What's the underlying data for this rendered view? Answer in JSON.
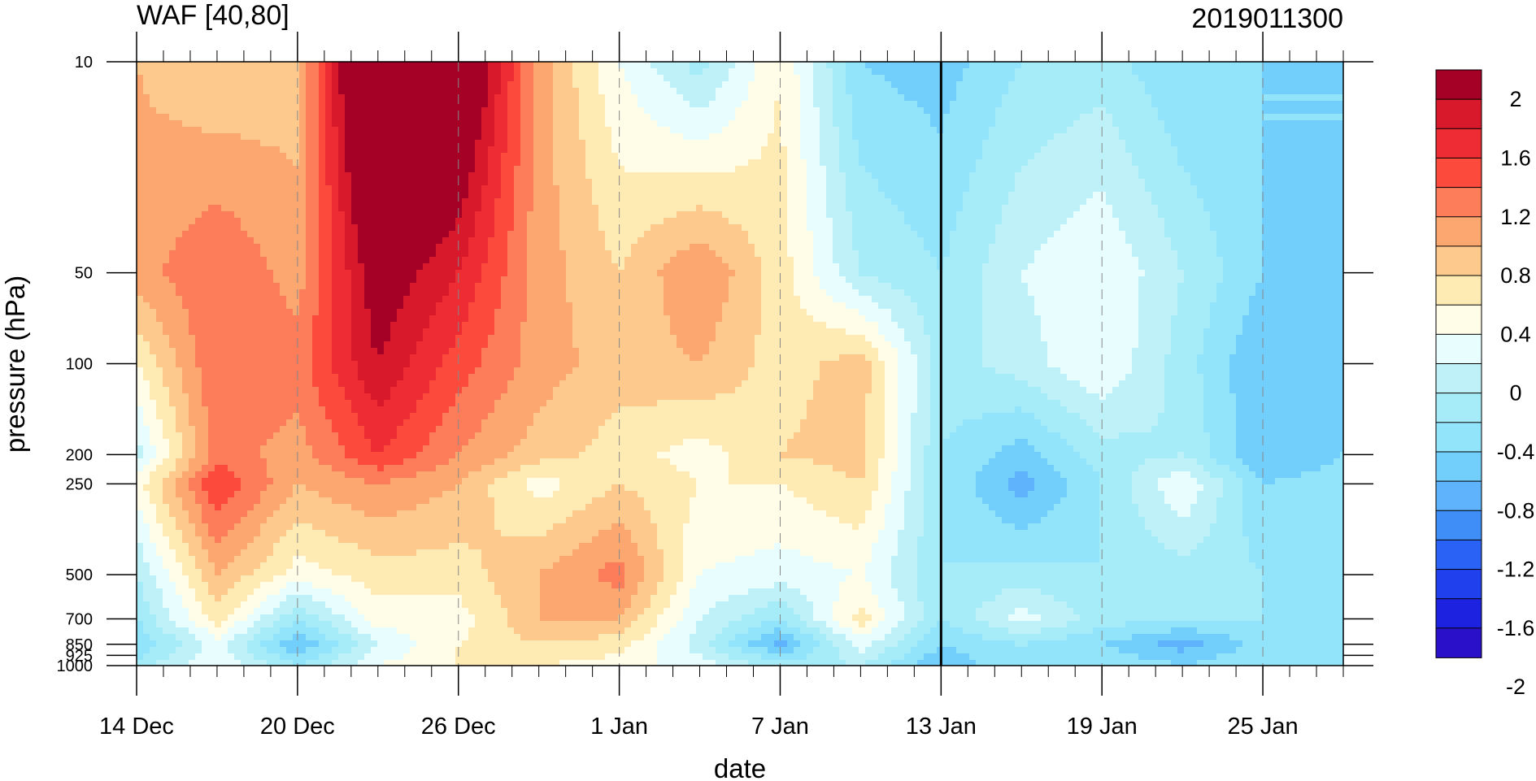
{
  "chart_data": {
    "type": "heatmap",
    "title_left": "WAF [40,80]",
    "title_right": "2019011300",
    "xlabel": "date",
    "ylabel": "pressure (hPa)",
    "y_scale": "log",
    "y_reversed": true,
    "ylim": [
      1000,
      10
    ],
    "x_range": [
      "2018-12-14",
      "2019-01-28"
    ],
    "x_ticks": [
      {
        "date": "2018-12-14",
        "label": "14 Dec"
      },
      {
        "date": "2018-12-20",
        "label": "20 Dec"
      },
      {
        "date": "2018-12-26",
        "label": "26 Dec"
      },
      {
        "date": "2019-01-01",
        "label": "1 Jan"
      },
      {
        "date": "2019-01-07",
        "label": "7 Jan"
      },
      {
        "date": "2019-01-13",
        "label": "13 Jan"
      },
      {
        "date": "2019-01-19",
        "label": "19 Jan"
      },
      {
        "date": "2019-01-25",
        "label": "25 Jan"
      }
    ],
    "y_ticks": [
      {
        "value": 10,
        "label": "10"
      },
      {
        "value": 50,
        "label": "50"
      },
      {
        "value": 100,
        "label": "100"
      },
      {
        "value": 200,
        "label": "200"
      },
      {
        "value": 250,
        "label": "250"
      },
      {
        "value": 500,
        "label": "500"
      },
      {
        "value": 700,
        "label": "700"
      },
      {
        "value": 850,
        "label": "850"
      },
      {
        "value": 925,
        "label": "925"
      },
      {
        "value": 1000,
        "label": "1000"
      }
    ],
    "analysis_date": "2019-01-13",
    "colorbar": {
      "labels": [
        "2",
        "1.6",
        "1.2",
        "0.8",
        "0.4",
        "0",
        "-0.4",
        "-0.8",
        "-1.2",
        "-1.6",
        "-2"
      ],
      "colors": [
        "#a50026",
        "#d7192b",
        "#ee2c33",
        "#fc4a3d",
        "#fd7c5a",
        "#fca670",
        "#fdc98c",
        "#feeab3",
        "#fffde8",
        "#e8fdfd",
        "#bef2f8",
        "#a6ecf8",
        "#92e4fb",
        "#72cffc",
        "#5eb3fc",
        "#3f8ef8",
        "#2a62f6",
        "#2040ee",
        "#1c22e0",
        "#2a10c8"
      ]
    },
    "value_grid": {
      "dates": [
        "2018-12-14",
        "2018-12-17",
        "2018-12-20",
        "2018-12-23",
        "2018-12-26",
        "2018-12-29",
        "2019-01-01",
        "2019-01-04",
        "2019-01-07",
        "2019-01-10",
        "2019-01-13",
        "2019-01-16",
        "2019-01-19",
        "2019-01-22",
        "2019-01-25",
        "2019-01-28"
      ],
      "levels": [
        10,
        50,
        100,
        200,
        250,
        500,
        700,
        850,
        1000
      ],
      "values": [
        [
          0.6,
          0.4,
          0.5,
          2.6,
          2.2,
          0.7,
          0.0,
          -0.5,
          0.2,
          -0.8,
          -0.9,
          -0.6,
          -0.5,
          -0.8,
          -0.8,
          -0.8
        ],
        [
          0.7,
          1.0,
          0.7,
          1.8,
          1.4,
          0.7,
          0.4,
          0.8,
          0.3,
          -0.4,
          -0.6,
          -0.2,
          0.0,
          -0.4,
          -0.8,
          -0.8
        ],
        [
          0.2,
          1.0,
          0.9,
          1.6,
          1.1,
          0.7,
          0.5,
          0.6,
          0.3,
          0.5,
          -0.5,
          -0.3,
          0.0,
          -0.5,
          -1.0,
          -0.9
        ],
        [
          -0.3,
          0.9,
          0.7,
          1.2,
          0.8,
          0.5,
          0.3,
          0.1,
          0.4,
          0.5,
          -0.6,
          -0.9,
          -0.5,
          -0.4,
          -1.0,
          -0.8
        ],
        [
          0.1,
          1.2,
          0.6,
          0.8,
          0.6,
          0.1,
          0.4,
          0.2,
          0.2,
          0.4,
          -0.6,
          -1.1,
          -0.6,
          0.0,
          -0.8,
          -0.7
        ],
        [
          -0.4,
          0.6,
          0.1,
          0.3,
          0.3,
          0.6,
          0.9,
          0.0,
          -0.1,
          0.0,
          -0.6,
          -0.5,
          -0.6,
          -0.5,
          -0.6,
          -0.6
        ],
        [
          -0.6,
          0.3,
          -0.6,
          0.1,
          0.1,
          0.6,
          0.6,
          -0.2,
          -0.6,
          0.3,
          -0.6,
          -0.1,
          -0.5,
          -0.6,
          -0.6,
          -0.7
        ],
        [
          -0.8,
          -0.1,
          -1.0,
          -0.2,
          0.2,
          0.4,
          0.3,
          -0.3,
          -1.1,
          -0.1,
          -0.8,
          -0.6,
          -0.8,
          -1.1,
          -0.7,
          -0.8
        ],
        [
          -0.5,
          0.0,
          -0.6,
          0.0,
          0.2,
          0.2,
          0.1,
          -0.1,
          -0.5,
          -0.4,
          -1.0,
          -0.6,
          -0.6,
          -0.8,
          -0.6,
          -0.7
        ]
      ]
    }
  }
}
